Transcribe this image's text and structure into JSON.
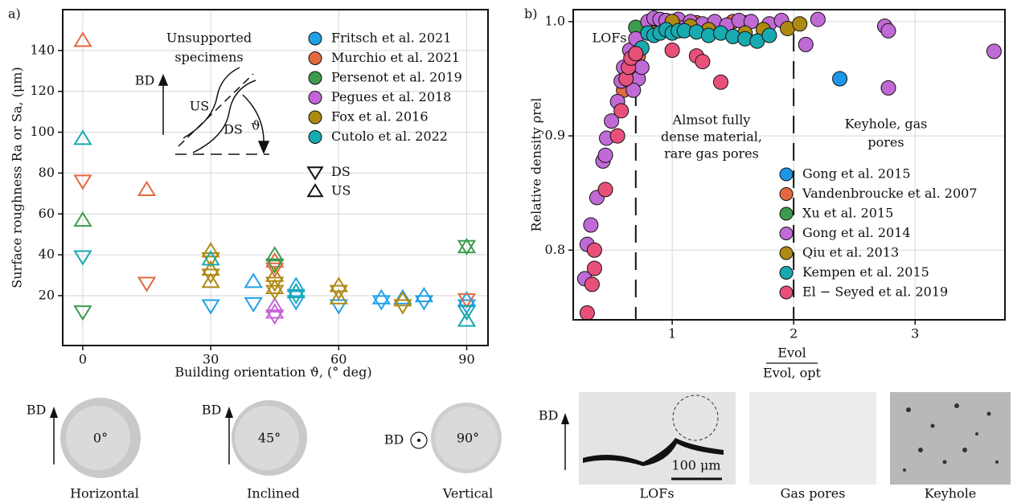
{
  "chart_data": [
    {
      "type": "scatter",
      "annotations": {
        "panel": "a)",
        "title": [
          "Unsupported",
          "specimens"
        ],
        "bd": "BD",
        "us": "US",
        "ds": "DS",
        "angle": "ϑ"
      },
      "x_label": "Building orientation ϑ, (° deg)",
      "y_label": "Surface roughness Ra or Sa, (μm)",
      "xlim": [
        -4.7,
        95
      ],
      "xticks": [
        0,
        30,
        60,
        90
      ],
      "ylim": [
        -4.4,
        160
      ],
      "yticks": [
        20,
        40,
        60,
        80,
        100,
        120,
        140
      ],
      "grid": true,
      "legend": "upper right",
      "filled": false,
      "marker_legend": [
        {
          "marker": "down",
          "label": "DS"
        },
        {
          "marker": "up",
          "label": "US"
        }
      ],
      "series": [
        {
          "name": "Fritsch et al. 2021",
          "color": "#22a0e6",
          "x": [
            30,
            40,
            40,
            50,
            50,
            60,
            70,
            70,
            75,
            80,
            80,
            90,
            90
          ],
          "values": [
            15,
            27,
            16,
            25,
            17,
            15,
            19,
            17,
            19,
            20,
            17,
            18,
            15
          ],
          "markers": [
            "down",
            "up",
            "down",
            "up",
            "down",
            "down",
            "up",
            "down",
            "up",
            "up",
            "down",
            "up",
            "down"
          ]
        },
        {
          "name": "Murchio et al. 2021",
          "color": "#e2693f",
          "x": [
            0,
            0,
            15,
            15,
            45,
            45,
            90
          ],
          "values": [
            145,
            76,
            72,
            26,
            37,
            33,
            18
          ],
          "markers": [
            "up",
            "down",
            "up",
            "down",
            "up",
            "down",
            "down"
          ]
        },
        {
          "name": "Persenot et al. 2019",
          "color": "#3d9b4e",
          "x": [
            0,
            0,
            45,
            45,
            90,
            90
          ],
          "values": [
            57,
            12,
            40,
            35,
            44,
            44
          ],
          "markers": [
            "up",
            "down",
            "up",
            "down",
            "up",
            "down"
          ]
        },
        {
          "name": "Pegues et al. 2018",
          "color": "#c564d6",
          "x": [
            45,
            45,
            45
          ],
          "values": [
            12,
            10,
            15
          ],
          "markers": [
            "up",
            "down",
            "up"
          ]
        },
        {
          "name": "Fox et al. 2016",
          "color": "#ae8a12",
          "x": [
            30,
            30,
            30,
            30,
            30,
            45,
            45,
            45,
            45,
            60,
            60,
            60,
            75,
            75
          ],
          "values": [
            42,
            38,
            33,
            30,
            27,
            30,
            26,
            24,
            22,
            25,
            22,
            19,
            18,
            15
          ],
          "markers": [
            "up",
            "down",
            "up",
            "down",
            "up",
            "up",
            "down",
            "up",
            "down",
            "up",
            "down",
            "up",
            "up",
            "down"
          ]
        },
        {
          "name": "Cutolo et al. 2022",
          "color": "#19a9b0",
          "x": [
            0,
            0,
            30,
            50,
            50,
            90,
            90
          ],
          "values": [
            97,
            39,
            38,
            22,
            20,
            8,
            12
          ],
          "markers": [
            "up",
            "down",
            "up",
            "up",
            "down",
            "up",
            "down"
          ]
        }
      ]
    },
    {
      "type": "scatter",
      "annotations": {
        "panel": "b)",
        "lof": "LOFs",
        "dense": [
          "Almsot fully",
          "dense material,",
          "rare gas pores"
        ],
        "keyhole": [
          "Keyhole, gas",
          "pores"
        ]
      },
      "x_label": {
        "numerator": "Evol",
        "denominator": "Evol, opt"
      },
      "y_label": "Relative density ρrel",
      "xlim": [
        0.185,
        3.74
      ],
      "xticks": [
        1,
        2,
        3
      ],
      "ylim": [
        0.739,
        1.0105
      ],
      "yticks": [
        0.8,
        0.9,
        {
          "value": 1,
          "label": "1.0"
        }
      ],
      "vlines": [
        0.7,
        2.0
      ],
      "grid": true,
      "legend": "lower right",
      "filled": true,
      "series": [
        {
          "name": "Gong et al. 2015",
          "color": "#1e96e8",
          "x": [
            0.65,
            2.38,
            0.8
          ],
          "values": [
            0.955,
            0.95,
            0.99
          ]
        },
        {
          "name": "Vandenbroucke et al. 2007",
          "color": "#e2693f",
          "x": [
            0.6,
            0.72,
            1.5,
            1.0,
            1.2,
            1.6
          ],
          "values": [
            0.94,
            0.97,
            1.0,
            0.998,
            0.999,
            0.999
          ]
        },
        {
          "name": "Xu et al. 2015",
          "color": "#3d9b4e",
          "x": [
            0.7
          ],
          "values": [
            0.995
          ]
        },
        {
          "name": "Gong et al. 2014",
          "color": "#c06ad6",
          "x": [
            0.28,
            0.3,
            0.33,
            0.38,
            0.43,
            0.45,
            0.46,
            0.5,
            0.55,
            0.58,
            0.6,
            0.65,
            0.7,
            0.72,
            0.75,
            0.8,
            0.85,
            0.9,
            0.95,
            1.05,
            1.1,
            1.15,
            1.25,
            1.35,
            1.45,
            1.55,
            1.65,
            1.8,
            1.9,
            2.2,
            2.1,
            2.75,
            2.78,
            2.78,
            3.65,
            0.68
          ],
          "values": [
            0.775,
            0.805,
            0.822,
            0.846,
            0.878,
            0.883,
            0.898,
            0.913,
            0.93,
            0.948,
            0.96,
            0.975,
            0.985,
            0.95,
            0.96,
            1.0,
            1.003,
            1.002,
            1.001,
            1.002,
            0.995,
            1.0,
            0.998,
            1.0,
            0.997,
            1.001,
            1.0,
            0.998,
            1.001,
            1.002,
            0.98,
            0.996,
            0.992,
            0.942,
            0.974,
            0.94
          ]
        },
        {
          "name": "Qiu et al. 2013",
          "color": "#ae8a12",
          "x": [
            0.85,
            1.0,
            1.15,
            1.3,
            1.6,
            1.75,
            1.95,
            2.05
          ],
          "values": [
            0.99,
            1.0,
            0.996,
            0.993,
            0.99,
            0.993,
            0.994,
            0.998
          ]
        },
        {
          "name": "Kempen et al. 2015",
          "color": "#19a9b0",
          "x": [
            0.75,
            0.8,
            0.85,
            0.9,
            0.95,
            1.0,
            1.05,
            1.1,
            1.2,
            1.3,
            1.4,
            1.5,
            1.6,
            1.7,
            1.8
          ],
          "values": [
            0.977,
            0.99,
            0.988,
            0.99,
            0.993,
            0.99,
            0.992,
            0.992,
            0.991,
            0.988,
            0.99,
            0.987,
            0.985,
            0.983,
            0.988
          ]
        },
        {
          "name": "El − Seyed et al. 2019",
          "color": "#e8507a",
          "x": [
            0.3,
            0.34,
            0.36,
            0.36,
            0.45,
            0.55,
            0.58,
            0.62,
            0.64,
            0.66,
            0.7,
            1.0,
            1.2,
            1.25,
            1.4
          ],
          "values": [
            0.745,
            0.77,
            0.784,
            0.8,
            0.853,
            0.9,
            0.922,
            0.95,
            0.96,
            0.968,
            0.972,
            0.975,
            0.97,
            0.965,
            0.947
          ]
        }
      ]
    }
  ],
  "micrographs": {
    "left": {
      "bd": "BD",
      "items": [
        {
          "angle": "0°",
          "caption": "Horizontal"
        },
        {
          "angle": "45°",
          "caption": "Inclined"
        },
        {
          "angle": "90°",
          "caption": "Vertical"
        }
      ]
    },
    "right": {
      "bd": "BD",
      "scale_bar": "100 μm",
      "items": [
        {
          "caption": "LOFs"
        },
        {
          "caption": "Gas pores"
        },
        {
          "caption": "Keyhole"
        }
      ]
    }
  }
}
